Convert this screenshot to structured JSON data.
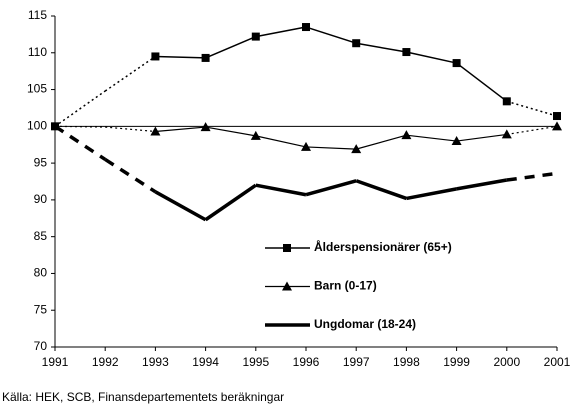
{
  "chart_data": {
    "type": "line",
    "categories": [
      1991,
      1992,
      1993,
      1994,
      1995,
      1996,
      1997,
      1998,
      1999,
      2000,
      2001
    ],
    "ylim": [
      70,
      115
    ],
    "yticks": [
      70,
      75,
      80,
      85,
      90,
      95,
      100,
      105,
      110,
      115
    ],
    "reference_line": 100,
    "series": [
      {
        "name": "Ålderspensionärer (65+)",
        "color": "#000000",
        "marker": "square",
        "width": 1.5,
        "values": [
          100,
          104.8,
          109.5,
          109.3,
          112.2,
          113.5,
          111.3,
          110.1,
          108.6,
          103.4,
          101.4
        ],
        "marked": [
          true,
          false,
          true,
          true,
          true,
          true,
          true,
          true,
          true,
          true,
          true
        ],
        "segment_styles": [
          "dotted",
          "dotted",
          "solid",
          "solid",
          "solid",
          "solid",
          "solid",
          "solid",
          "solid",
          "dotted"
        ]
      },
      {
        "name": "Barn (0-17)",
        "color": "#000000",
        "marker": "triangle",
        "width": 1.2,
        "values": [
          100,
          99.9,
          99.3,
          99.9,
          98.7,
          97.2,
          96.9,
          98.8,
          98.0,
          98.9,
          100
        ],
        "marked": [
          false,
          false,
          true,
          true,
          true,
          true,
          true,
          true,
          true,
          true,
          true
        ],
        "segment_styles": [
          "dotted",
          "dotted",
          "solid",
          "solid",
          "solid",
          "solid",
          "solid",
          "solid",
          "solid",
          "dotted"
        ]
      },
      {
        "name": "Ungdomar (18-24)",
        "color": "#000000",
        "marker": "none",
        "width": 3.5,
        "values": [
          100,
          95.5,
          91.1,
          87.3,
          92.0,
          90.7,
          92.6,
          90.2,
          91.5,
          92.7,
          93.6
        ],
        "marked": [
          false,
          false,
          false,
          false,
          false,
          false,
          false,
          false,
          false,
          false,
          false
        ],
        "segment_styles": [
          "dashed",
          "dashed",
          "solid",
          "solid",
          "solid",
          "solid",
          "solid",
          "solid",
          "solid",
          "dashed"
        ]
      }
    ],
    "source": "Källa: HEK, SCB, Finansdepartementets beräkningar"
  }
}
